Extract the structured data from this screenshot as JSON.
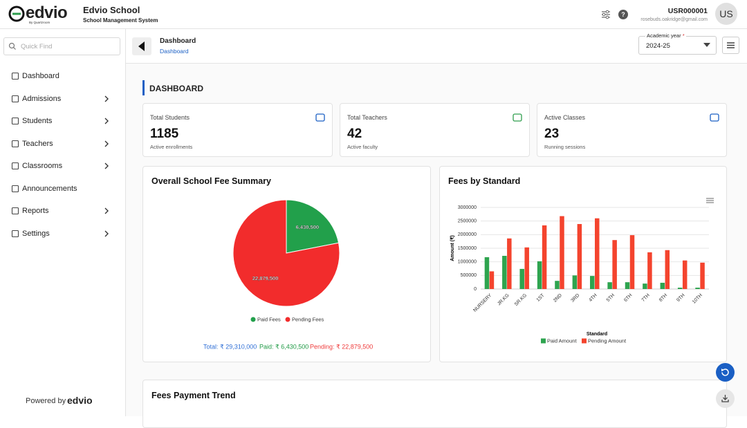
{
  "header": {
    "logo": "edvio",
    "logo_tagline": "By Quartzroom",
    "school_name": "Edvio School",
    "school_subtitle": "School Management System",
    "user_id": "USR000001",
    "user_email": "rosebuds.oakridge@gmail.com",
    "avatar": "US"
  },
  "sidebar": {
    "search_placeholder": "Quick Find",
    "nav": [
      "Dashboard",
      "Admissions",
      "Students",
      "Teachers",
      "Classrooms",
      "Announcements",
      "Reports",
      "Settings"
    ],
    "footer_label": "Powered by",
    "footer_logo": "edvio"
  },
  "topbar": {
    "title": "Dashboard",
    "breadcrumb": "Dashboard",
    "year_label": "Academic year",
    "year_required": "*",
    "year_value": "2024-25"
  },
  "page_title": "DASHBOARD",
  "stats": [
    {
      "label": "Total Students",
      "value": 1185,
      "caption": "Active enrollments"
    },
    {
      "label": "Total Teachers",
      "value": 42,
      "caption": "Active faculty"
    },
    {
      "label": "Active Classes",
      "value": 23,
      "caption": "Running sessions"
    }
  ],
  "chart_data": [
    {
      "type": "pie",
      "title": "Overall School Fee Summary",
      "labels": [
        "Paid Fees",
        "Pending Fees"
      ],
      "values": [
        6430500,
        22879500
      ],
      "value_labels": [
        "6,430,500",
        "22,879,500"
      ],
      "colors": [
        "#22a04b",
        "#f22c2c"
      ],
      "annotations": [
        "Total: ₹ 29,310,000",
        "Paid: ₹ 6,430,500",
        "Pending: ₹ 22,879,500"
      ]
    },
    {
      "type": "bar",
      "title": "Fees by Standard",
      "x_label": "Standard",
      "y_label": "Amount (₹)",
      "categories": [
        "NURSERY",
        "JR.KG",
        "SR.KG",
        "1ST",
        "2ND",
        "3RD",
        "4TH",
        "5TH",
        "6TH",
        "7TH",
        "8TH",
        "9TH",
        "10TH"
      ],
      "series": [
        {
          "name": "Paid Amount",
          "color": "#2ea44f",
          "values": [
            1170000,
            1220000,
            740000,
            1020000,
            300000,
            500000,
            480000,
            250000,
            250000,
            200000,
            230000,
            50000,
            50000
          ]
        },
        {
          "name": "Pending Amount",
          "color": "#f4442e",
          "values": [
            650000,
            1860000,
            1530000,
            2340000,
            2680000,
            2390000,
            2600000,
            1800000,
            1980000,
            1350000,
            1430000,
            1050000,
            970000
          ]
        }
      ],
      "ylim": [
        0,
        3000000
      ],
      "yticks": [
        0,
        500000,
        1000000,
        1500000,
        2000000,
        2500000,
        3000000
      ],
      "grid": true,
      "legend": "bottom"
    }
  ],
  "trend_title": "Fees Payment Trend"
}
